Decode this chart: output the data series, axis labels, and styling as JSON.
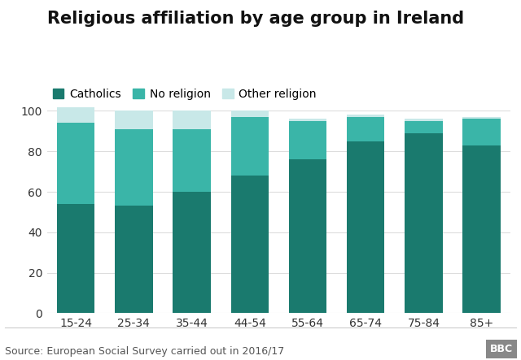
{
  "title": "Religious affiliation by age group in Ireland",
  "categories": [
    "15-24",
    "25-34",
    "35-44",
    "44-54",
    "55-64",
    "65-74",
    "75-84",
    "85+"
  ],
  "series": [
    {
      "name": "Catholics",
      "values": [
        54,
        53,
        60,
        68,
        76,
        85,
        89,
        83
      ],
      "color": "#1a7a6e"
    },
    {
      "name": "No religion",
      "values": [
        40,
        38,
        31,
        29,
        19,
        12,
        6,
        13
      ],
      "color": "#3ab5a8"
    },
    {
      "name": "Other religion",
      "values": [
        8,
        9,
        9,
        3,
        1,
        1,
        1,
        1
      ],
      "color": "#c8e8e8"
    }
  ],
  "ylim": [
    0,
    105
  ],
  "yticks": [
    0,
    20,
    40,
    60,
    80,
    100
  ],
  "source_text": "Source: European Social Survey carried out in 2016/17",
  "bbc_text": "BBC",
  "background_color": "#ffffff",
  "grid_color": "#dddddd",
  "title_fontsize": 15,
  "legend_fontsize": 10,
  "tick_fontsize": 10,
  "source_fontsize": 9,
  "bar_width": 0.65
}
